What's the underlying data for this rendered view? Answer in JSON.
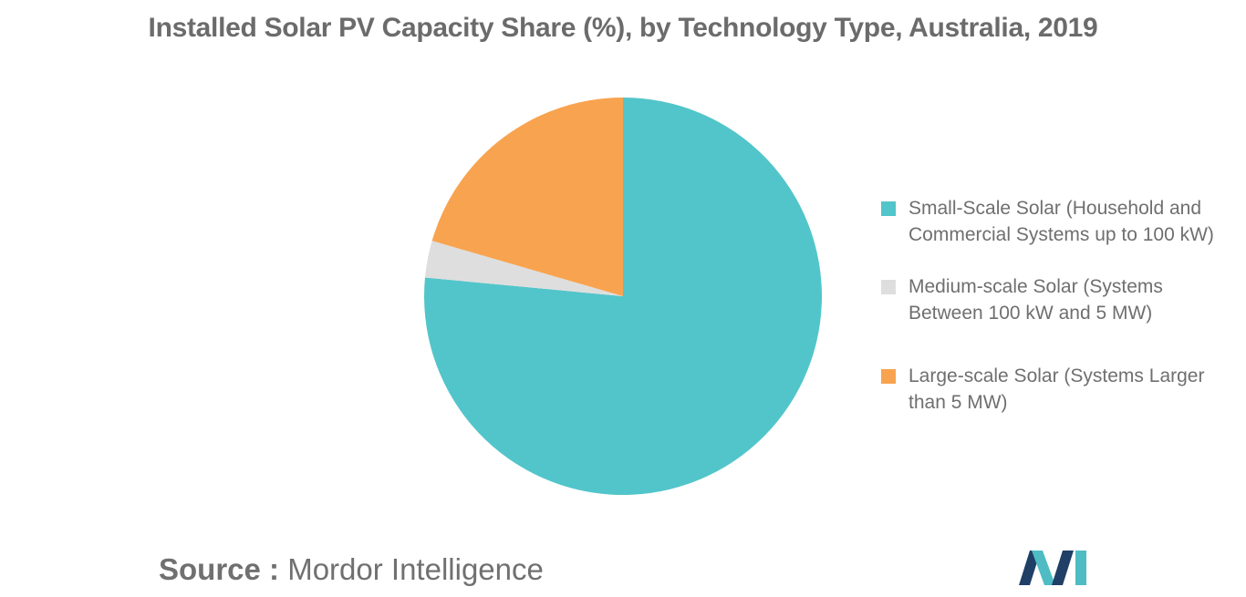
{
  "chart_data": {
    "type": "pie",
    "title": "Installed Solar PV Capacity Share (%), by Technology Type, Australia, 2019",
    "slices": [
      {
        "label": "Small-Scale Solar (Household and Commercial Systems up to 100 kW)",
        "value": 76.5,
        "color": "#52c5ca"
      },
      {
        "label": "Medium-scale Solar (Systems Between 100 kW and 5 MW)",
        "value": 3,
        "color": "#dedede"
      },
      {
        "label": "Large-scale Solar (Systems Larger than 5 MW)",
        "value": 20.5,
        "color": "#f8a34f"
      }
    ],
    "legend_position": "right"
  },
  "source": {
    "label": "Source :",
    "text": " Mordor Intelligence"
  },
  "logo": {
    "name": "mordor-intelligence-logo",
    "colors": [
      "#1f3f66",
      "#4fbcc4"
    ]
  }
}
